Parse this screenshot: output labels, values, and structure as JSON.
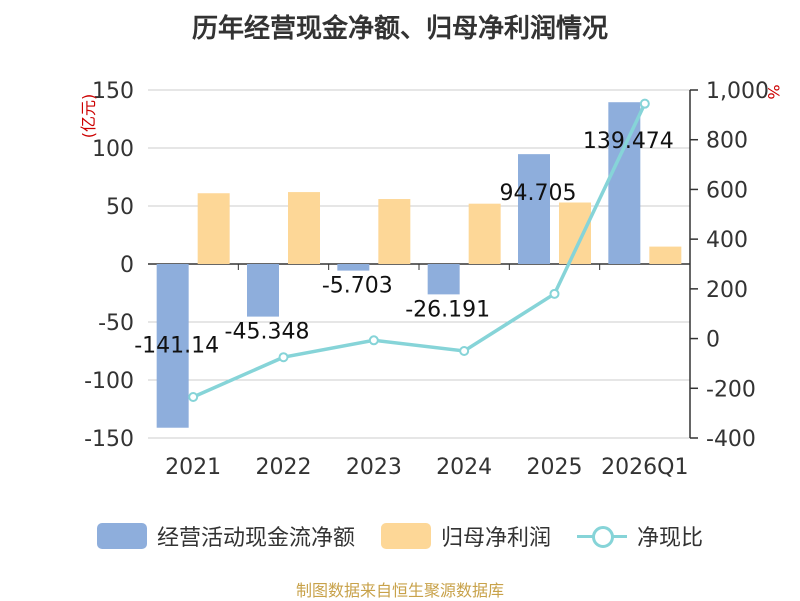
{
  "title": "历年经营现金净额、归母净利润情况",
  "source": "制图数据来自恒生聚源数据库",
  "chart_data": {
    "type": "bar",
    "categories": [
      "2021",
      "2022",
      "2023",
      "2024",
      "2025",
      "2026Q1"
    ],
    "series": [
      {
        "name": "经营活动现金流净额",
        "kind": "bar",
        "axis": "left",
        "color": "#8eaedc",
        "values": [
          -141.14,
          -45.348,
          -5.703,
          -26.191,
          94.705,
          139.474
        ],
        "labels": [
          "-141.14",
          "-45.348",
          "-5.703",
          "-26.191",
          "94.705",
          "139.474"
        ]
      },
      {
        "name": "归母净利润",
        "kind": "bar",
        "axis": "left",
        "color": "#fdd797",
        "values": [
          61,
          62,
          56,
          52,
          53,
          15
        ]
      },
      {
        "name": "净现比",
        "kind": "line",
        "axis": "right",
        "color": "#86d4d8",
        "values": [
          -235,
          -75,
          -7,
          -50,
          180,
          945
        ]
      }
    ],
    "left_axis": {
      "unit": "(亿元)",
      "min": -150,
      "max": 150,
      "step": 50,
      "ticks": [
        "-150",
        "-100",
        "-50",
        "0",
        "50",
        "100",
        "150"
      ]
    },
    "right_axis": {
      "unit": "%",
      "min": -400,
      "max": 1000,
      "step": 200,
      "ticks": [
        "-400",
        "-200",
        "0",
        "200",
        "400",
        "600",
        "800",
        "1,000"
      ]
    },
    "grid": true,
    "legend_position": "bottom"
  }
}
